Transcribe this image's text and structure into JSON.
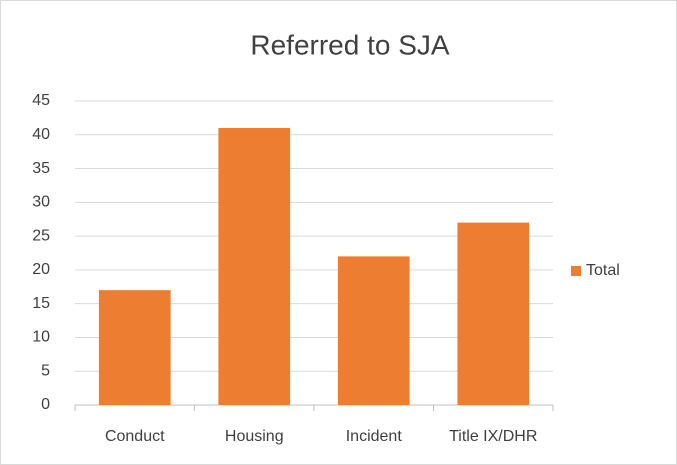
{
  "chart_data": {
    "type": "bar",
    "title": "Referred to SJA",
    "categories": [
      "Conduct",
      "Housing",
      "Incident",
      "Title IX/DHR"
    ],
    "series": [
      {
        "name": "Total",
        "color": "#ed7d31",
        "values": [
          17,
          41,
          22,
          27
        ]
      }
    ],
    "ylim": [
      0,
      45
    ],
    "yticks": [
      0,
      5,
      10,
      15,
      20,
      25,
      30,
      35,
      40,
      45
    ],
    "grid": true,
    "legend": "right"
  }
}
